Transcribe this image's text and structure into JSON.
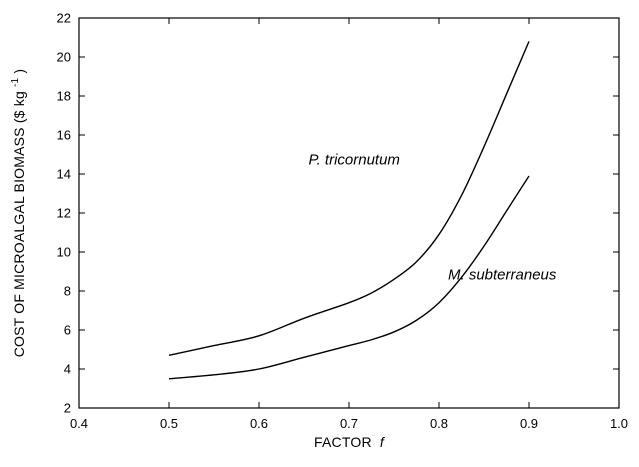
{
  "chart_data": {
    "type": "line",
    "xlabel": "FACTOR",
    "xlabel_symbol": "f",
    "ylabel": "COST OF MICROALGAL BIOMASS ($ kg",
    "ylabel_sup": "-1",
    "ylabel_close": ")",
    "xlim": [
      0.4,
      1.0
    ],
    "ylim": [
      2,
      22
    ],
    "xticks": [
      0.4,
      0.5,
      0.6,
      0.7,
      0.8,
      0.9,
      1.0
    ],
    "xtick_labels": [
      "0.4",
      "0.5",
      "0.6",
      "0.7",
      "0.8",
      "0.9",
      "1.0"
    ],
    "yticks": [
      2,
      4,
      6,
      8,
      10,
      12,
      14,
      16,
      18,
      20,
      22
    ],
    "ytick_labels": [
      "2",
      "4",
      "6",
      "8",
      "10",
      "12",
      "14",
      "16",
      "18",
      "20",
      "22"
    ],
    "grid": false,
    "legend": "none",
    "series": [
      {
        "name": "P. tricornutum",
        "x": [
          0.5,
          0.55,
          0.6,
          0.65,
          0.7,
          0.725,
          0.75,
          0.775,
          0.8,
          0.825,
          0.85,
          0.875,
          0.9
        ],
        "y": [
          4.7,
          5.2,
          5.7,
          6.6,
          7.4,
          7.9,
          8.6,
          9.5,
          10.9,
          12.9,
          15.4,
          18.1,
          20.8
        ]
      },
      {
        "name": "M. subterraneus",
        "x": [
          0.5,
          0.55,
          0.6,
          0.65,
          0.7,
          0.725,
          0.75,
          0.775,
          0.8,
          0.825,
          0.85,
          0.875,
          0.9
        ],
        "y": [
          3.5,
          3.7,
          4.0,
          4.6,
          5.2,
          5.5,
          5.9,
          6.5,
          7.4,
          8.7,
          10.3,
          12.1,
          13.9
        ]
      }
    ],
    "annotations": [
      {
        "text": "P. tricornutum",
        "x": 0.655,
        "y": 14.5
      },
      {
        "text": "M. subterraneus",
        "x": 0.81,
        "y": 8.6
      }
    ]
  }
}
